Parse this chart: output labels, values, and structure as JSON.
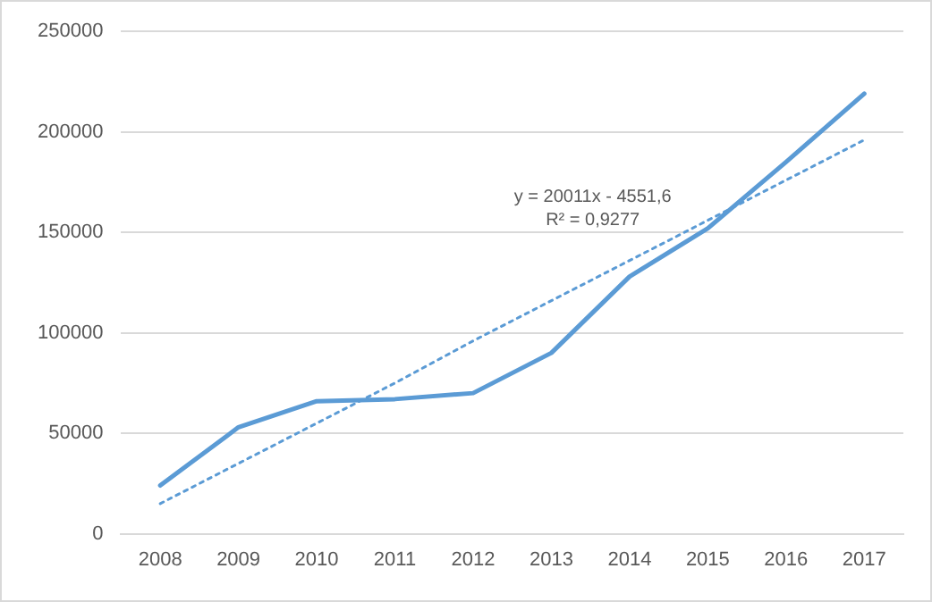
{
  "chart_data": {
    "type": "line",
    "categories": [
      "2008",
      "2009",
      "2010",
      "2011",
      "2012",
      "2013",
      "2014",
      "2015",
      "2016",
      "2017"
    ],
    "series": [
      {
        "color": "#5b9bd5",
        "values": [
          24000,
          53000,
          66000,
          67000,
          70000,
          90000,
          128000,
          152000,
          185000,
          219000
        ]
      },
      {
        "type": "line",
        "line_style": "dotted",
        "color": "#5b9bd5",
        "values": [
          15000,
          35000,
          55000,
          75000,
          96000,
          116000,
          136000,
          156000,
          176000,
          196000
        ]
      }
    ],
    "ylim": [
      0,
      250000
    ],
    "yticks": [
      0,
      50000,
      100000,
      150000,
      200000,
      250000
    ],
    "annotations": [
      "y = 20011x - 4551,6",
      "R² = 0,9277"
    ],
    "grid": "y",
    "legend": false,
    "marker": "none",
    "line_style": "solid"
  }
}
